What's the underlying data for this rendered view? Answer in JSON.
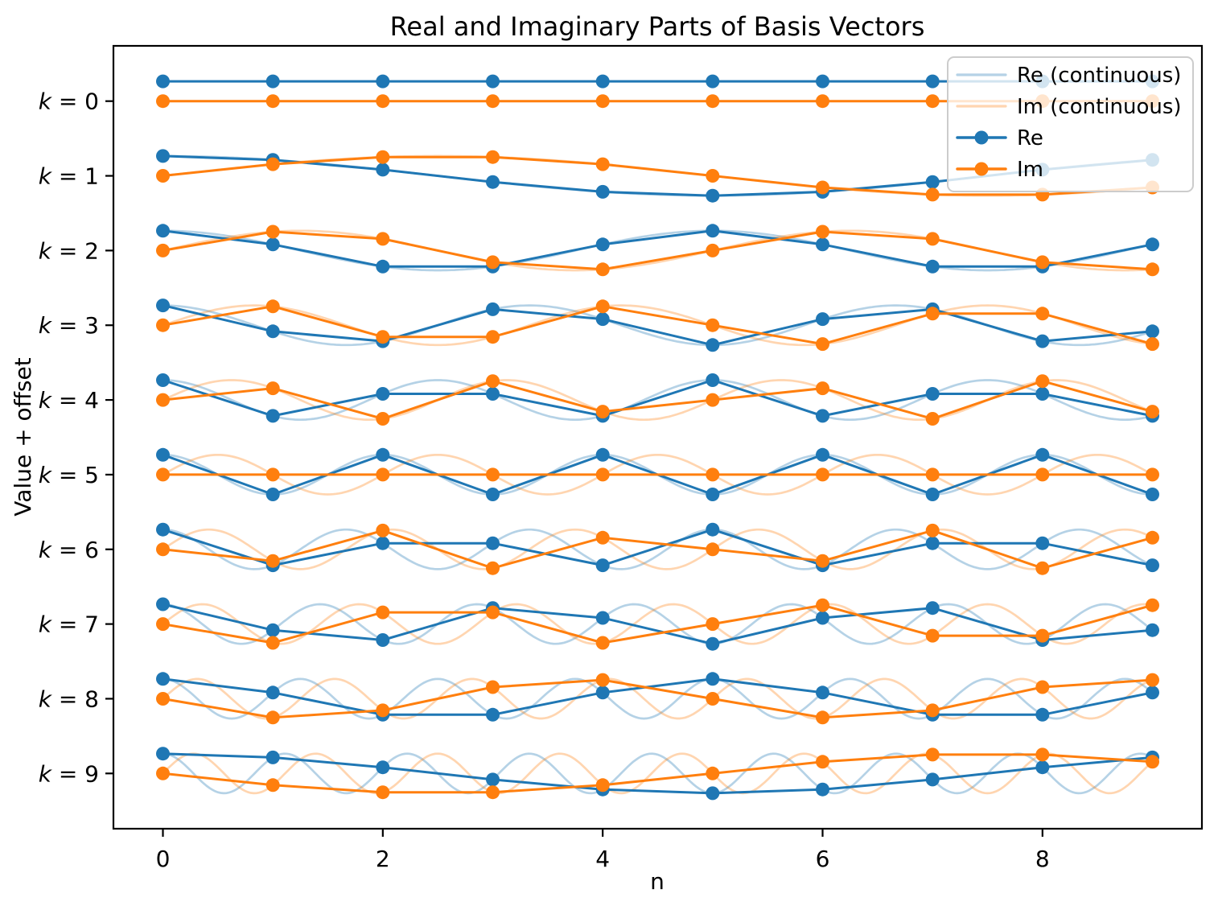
{
  "chart_data": {
    "type": "line",
    "title": "Real and Imaginary Parts of Basis Vectors",
    "xlabel": "n",
    "ylabel": "Value + offset",
    "xlim": [
      -0.45,
      9.45
    ],
    "ylim": [
      -9.74,
      0.74
    ],
    "grid": false,
    "x_ticks": [
      0,
      2,
      4,
      6,
      8
    ],
    "y_ticks": [
      {
        "label": "k = 0",
        "offset": 0
      },
      {
        "label": "k = 1",
        "offset": -1
      },
      {
        "label": "k = 2",
        "offset": -2
      },
      {
        "label": "k = 3",
        "offset": -3
      },
      {
        "label": "k = 4",
        "offset": -4
      },
      {
        "label": "k = 5",
        "offset": -5
      },
      {
        "label": "k = 6",
        "offset": -6
      },
      {
        "label": "k = 7",
        "offset": -7
      },
      {
        "label": "k = 8",
        "offset": -8
      },
      {
        "label": "k = 9",
        "offset": -9
      }
    ],
    "colors": {
      "re": "#1f77b4",
      "im": "#ff7f0e",
      "continuous_opacity": 0.33,
      "legend_border": "#cccccc",
      "spine": "#000000"
    },
    "legend": {
      "position": "upper right",
      "entries": [
        {
          "label": "Re (continuous)",
          "style": "light-line",
          "color": "#1f77b4"
        },
        {
          "label": "Im (continuous)",
          "style": "light-line",
          "color": "#ff7f0e"
        },
        {
          "label": "Re",
          "style": "line-marker",
          "color": "#1f77b4"
        },
        {
          "label": "Im",
          "style": "line-marker",
          "color": "#ff7f0e"
        }
      ]
    },
    "n": [
      0,
      1,
      2,
      3,
      4,
      5,
      6,
      7,
      8,
      9
    ],
    "N": 10,
    "amplitude": 0.265,
    "continuous": {
      "t_min": 0,
      "t_max": 9,
      "samples_per_unit": 40
    },
    "series": [
      {
        "k": 0,
        "offset": 0,
        "re": [
          0.265,
          0.265,
          0.265,
          0.265,
          0.265,
          0.265,
          0.265,
          0.265,
          0.265,
          0.265
        ],
        "im": [
          0,
          0,
          0,
          0,
          0,
          0,
          0,
          0,
          0,
          0
        ]
      },
      {
        "k": 1,
        "offset": -1,
        "re": [
          0.265,
          0.214,
          0.082,
          -0.082,
          -0.214,
          -0.265,
          -0.214,
          -0.082,
          0.082,
          0.214
        ],
        "im": [
          0,
          0.156,
          0.252,
          0.252,
          0.156,
          0,
          -0.156,
          -0.252,
          -0.252,
          -0.156
        ]
      },
      {
        "k": 2,
        "offset": -2,
        "re": [
          0.265,
          0.082,
          -0.214,
          -0.214,
          0.082,
          0.265,
          0.082,
          -0.214,
          -0.214,
          0.082
        ],
        "im": [
          0,
          0.252,
          0.156,
          -0.156,
          -0.252,
          0,
          0.252,
          0.156,
          -0.156,
          -0.252
        ]
      },
      {
        "k": 3,
        "offset": -3,
        "re": [
          0.265,
          -0.082,
          -0.214,
          0.214,
          0.082,
          -0.265,
          0.082,
          0.214,
          -0.214,
          -0.082
        ],
        "im": [
          0,
          0.252,
          -0.156,
          -0.156,
          0.252,
          0,
          -0.252,
          0.156,
          0.156,
          -0.252
        ]
      },
      {
        "k": 4,
        "offset": -4,
        "re": [
          0.265,
          -0.214,
          0.082,
          0.082,
          -0.214,
          0.265,
          -0.214,
          0.082,
          0.082,
          -0.214
        ],
        "im": [
          0,
          0.156,
          -0.252,
          0.252,
          -0.156,
          0,
          0.156,
          -0.252,
          0.252,
          -0.156
        ]
      },
      {
        "k": 5,
        "offset": -5,
        "re": [
          0.265,
          -0.265,
          0.265,
          -0.265,
          0.265,
          -0.265,
          0.265,
          -0.265,
          0.265,
          -0.265
        ],
        "im": [
          0,
          0,
          0,
          0,
          0,
          0,
          0,
          0,
          0,
          0
        ]
      },
      {
        "k": 6,
        "offset": -6,
        "re": [
          0.265,
          -0.214,
          0.082,
          0.082,
          -0.214,
          0.265,
          -0.214,
          0.082,
          0.082,
          -0.214
        ],
        "im": [
          0,
          -0.156,
          0.252,
          -0.252,
          0.156,
          0,
          -0.156,
          0.252,
          -0.252,
          0.156
        ]
      },
      {
        "k": 7,
        "offset": -7,
        "re": [
          0.265,
          -0.082,
          -0.214,
          0.214,
          0.082,
          -0.265,
          0.082,
          0.214,
          -0.214,
          -0.082
        ],
        "im": [
          0,
          -0.252,
          0.156,
          0.156,
          -0.252,
          0,
          0.252,
          -0.156,
          -0.156,
          0.252
        ]
      },
      {
        "k": 8,
        "offset": -8,
        "re": [
          0.265,
          0.082,
          -0.214,
          -0.214,
          0.082,
          0.265,
          0.082,
          -0.214,
          -0.214,
          0.082
        ],
        "im": [
          0,
          -0.252,
          -0.156,
          0.156,
          0.252,
          0,
          -0.252,
          -0.156,
          0.156,
          0.252
        ]
      },
      {
        "k": 9,
        "offset": -9,
        "re": [
          0.265,
          0.214,
          0.082,
          -0.082,
          -0.214,
          -0.265,
          -0.214,
          -0.082,
          0.082,
          0.214
        ],
        "im": [
          0,
          -0.156,
          -0.252,
          -0.252,
          -0.156,
          0,
          0.156,
          0.252,
          0.252,
          0.156
        ]
      }
    ]
  }
}
